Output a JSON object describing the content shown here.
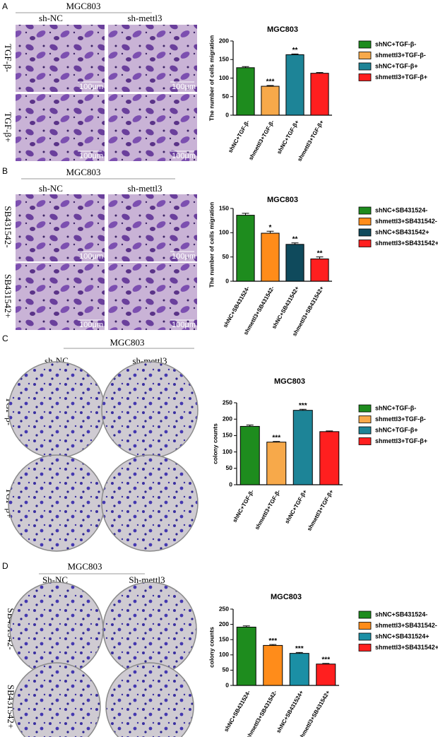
{
  "panels": [
    {
      "letter": "A",
      "header": "MGC803",
      "columns": [
        "sh-NC",
        "sh-mettl3"
      ],
      "rows": [
        "TGF-β-",
        "TGF-β+"
      ],
      "scale_bars": [
        "100μm",
        "100μm",
        "100μm",
        "100μm"
      ]
    },
    {
      "letter": "B",
      "header": "MGC803",
      "columns": [
        "sh-NC",
        "sh-mettl3"
      ],
      "rows": [
        "SB431542-",
        "SB431542+"
      ],
      "scale_bars": [
        "100μm",
        "100μm",
        "100μm",
        "100μm"
      ]
    },
    {
      "letter": "C",
      "header": "MGC803",
      "columns": [
        "sh-NC",
        "sh-mettl3"
      ],
      "rows": [
        "TGF-β-",
        "TGF-β+"
      ]
    },
    {
      "letter": "D",
      "header": "MGC803",
      "columns": [
        "Sh-NC",
        "Sh-mettl3"
      ],
      "rows": [
        "SB431542-",
        "SB431542+"
      ]
    }
  ],
  "chart_data": [
    {
      "type": "bar",
      "title": "MGC803",
      "y_label": "The number of cells migration",
      "categories": [
        "shNC+TGF-β-",
        "shmettl3+TGF-β-",
        "shNC+TGF-β+",
        "shmettl3+TGF-β+"
      ],
      "values": [
        128,
        78,
        163,
        113
      ],
      "errors": [
        3,
        2,
        2,
        2
      ],
      "annotations": [
        null,
        "***",
        "**",
        null
      ],
      "colors": [
        "#1e8c1e",
        "#f7a94a",
        "#1d8497",
        "#ff1f1f"
      ],
      "ylim": [
        0,
        200
      ],
      "yticks": [
        0,
        50,
        100,
        150,
        200
      ]
    },
    {
      "type": "bar",
      "title": "MGC803",
      "y_label": "The number of cells migration",
      "categories": [
        "shNC+SB431524-",
        "shmettl3+SB431542-",
        "shNC+SB431542+",
        "shmettl3+SB431542+"
      ],
      "values": [
        136,
        99,
        76,
        46
      ],
      "errors": [
        4,
        4,
        3,
        4
      ],
      "annotations": [
        null,
        "*",
        "**",
        "**"
      ],
      "colors": [
        "#1e8c1e",
        "#ff8c1a",
        "#0f4a5c",
        "#ff1f1f"
      ],
      "ylim": [
        0,
        150
      ],
      "yticks": [
        0,
        50,
        100,
        150
      ]
    },
    {
      "type": "bar",
      "title": "MGC803",
      "y_label": "colony counts",
      "categories": [
        "shNC+TGF-β-",
        "shmettl3+TGF-β-",
        "shNC+TGF-β+",
        "shmettl3+TGF-β+"
      ],
      "values": [
        178,
        130,
        227,
        162
      ],
      "errors": [
        4,
        2,
        3,
        2
      ],
      "annotations": [
        null,
        "***",
        "***",
        null
      ],
      "colors": [
        "#1e8c1e",
        "#f7a94a",
        "#1d8497",
        "#ff1f1f"
      ],
      "ylim": [
        0,
        250
      ],
      "yticks": [
        0,
        50,
        100,
        150,
        200,
        250
      ]
    },
    {
      "type": "bar",
      "title": "MGC803",
      "y_label": "colony counts",
      "categories": [
        "shNC+SB431524-",
        "shmettl3+SB431542-",
        "shNC+SB431524+",
        "shmettl3+SB431542+"
      ],
      "values": [
        191,
        131,
        105,
        70
      ],
      "errors": [
        4,
        3,
        3,
        2
      ],
      "annotations": [
        null,
        "***",
        "***",
        "***"
      ],
      "colors": [
        "#1e8c1e",
        "#ff8c1a",
        "#1b8fa5",
        "#ff1f1f"
      ],
      "ylim": [
        0,
        250
      ],
      "yticks": [
        0,
        50,
        100,
        150,
        200,
        250
      ]
    }
  ]
}
